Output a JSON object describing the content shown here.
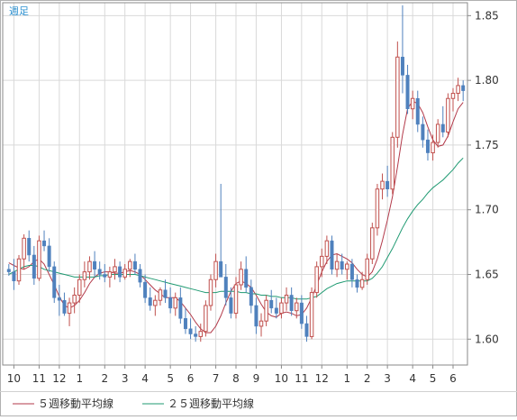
{
  "period_label": "週足",
  "legend": [
    {
      "label": "５週移動平均線",
      "color": "#b33a4a"
    },
    {
      "label": "２５週移動平均線",
      "color": "#1f9a72"
    }
  ],
  "colors": {
    "up": "#c0504d",
    "down": "#4f81bd",
    "grid": "#d9d9d9",
    "border": "#8a8a8a"
  },
  "chart_data": {
    "type": "candlestick",
    "title": "",
    "xlabel": "",
    "ylabel": "",
    "ylim": [
      1.58,
      1.86
    ],
    "y_ticks": [
      "1.60",
      "1.65",
      "1.70",
      "1.75",
      "1.80",
      "1.85"
    ],
    "x_ticks": [
      {
        "label": "10",
        "week": 1
      },
      {
        "label": "11",
        "week": 6
      },
      {
        "label": "12",
        "week": 10
      },
      {
        "label": "1",
        "week": 14
      },
      {
        "label": "2",
        "week": 19
      },
      {
        "label": "3",
        "week": 23
      },
      {
        "label": "4",
        "week": 27
      },
      {
        "label": "5",
        "week": 32
      },
      {
        "label": "6",
        "week": 36
      },
      {
        "label": "7",
        "week": 41
      },
      {
        "label": "8",
        "week": 45
      },
      {
        "label": "9",
        "week": 49
      },
      {
        "label": "10",
        "week": 54
      },
      {
        "label": "11",
        "week": 58
      },
      {
        "label": "12",
        "week": 62
      },
      {
        "label": "1",
        "week": 67
      },
      {
        "label": "2",
        "week": 71
      },
      {
        "label": "3",
        "week": 75
      },
      {
        "label": "4",
        "week": 80
      },
      {
        "label": "5",
        "week": 84
      },
      {
        "label": "6",
        "week": 88
      }
    ],
    "series": [
      {
        "name": "５週移動平均線",
        "values": [
          1.659,
          1.657,
          1.655,
          1.654,
          1.656,
          1.66,
          1.662,
          1.658,
          1.65,
          1.642,
          1.633,
          1.626,
          1.624,
          1.626,
          1.63,
          1.636,
          1.643,
          1.648,
          1.651,
          1.652,
          1.652,
          1.651,
          1.651,
          1.652,
          1.653,
          1.652,
          1.65,
          1.646,
          1.642,
          1.638,
          1.635,
          1.632,
          1.632,
          1.632,
          1.629,
          1.624,
          1.619,
          1.613,
          1.608,
          1.605,
          1.605,
          1.61,
          1.618,
          1.628,
          1.637,
          1.643,
          1.645,
          1.643,
          1.64,
          1.634,
          1.627,
          1.621,
          1.618,
          1.617,
          1.62,
          1.621,
          1.62,
          1.618,
          1.619,
          1.624,
          1.632,
          1.642,
          1.652,
          1.66,
          1.665,
          1.666,
          1.664,
          1.662,
          1.659,
          1.654,
          1.65,
          1.648,
          1.652,
          1.662,
          1.676,
          1.692,
          1.71,
          1.733,
          1.758,
          1.778,
          1.784,
          1.782,
          1.775,
          1.764,
          1.754,
          1.749,
          1.75,
          1.757,
          1.768,
          1.778,
          1.783
        ]
      },
      {
        "name": "２５週移動平均線",
        "values": [
          1.65,
          1.652,
          1.654,
          1.656,
          1.657,
          1.657,
          1.656,
          1.654,
          1.653,
          1.652,
          1.651,
          1.65,
          1.649,
          1.648,
          1.648,
          1.648,
          1.648,
          1.648,
          1.649,
          1.649,
          1.65,
          1.65,
          1.65,
          1.65,
          1.65,
          1.65,
          1.649,
          1.648,
          1.647,
          1.646,
          1.645,
          1.644,
          1.643,
          1.642,
          1.641,
          1.64,
          1.639,
          1.638,
          1.637,
          1.636,
          1.636,
          1.636,
          1.637,
          1.637,
          1.637,
          1.637,
          1.636,
          1.636,
          1.635,
          1.635,
          1.634,
          1.634,
          1.633,
          1.633,
          1.632,
          1.632,
          1.632,
          1.631,
          1.631,
          1.631,
          1.632,
          1.633,
          1.636,
          1.639,
          1.641,
          1.643,
          1.644,
          1.645,
          1.645,
          1.645,
          1.645,
          1.645,
          1.647,
          1.651,
          1.656,
          1.663,
          1.67,
          1.678,
          1.686,
          1.693,
          1.699,
          1.704,
          1.708,
          1.713,
          1.717,
          1.72,
          1.723,
          1.727,
          1.731,
          1.736,
          1.74
        ]
      }
    ],
    "candles": [
      [
        1.654,
        1.658,
        1.649,
        1.652
      ],
      [
        1.652,
        1.662,
        1.638,
        1.645
      ],
      [
        1.645,
        1.665,
        1.642,
        1.662
      ],
      [
        1.662,
        1.681,
        1.654,
        1.678
      ],
      [
        1.678,
        1.684,
        1.66,
        1.665
      ],
      [
        1.665,
        1.672,
        1.642,
        1.647
      ],
      [
        1.647,
        1.68,
        1.645,
        1.676
      ],
      [
        1.676,
        1.684,
        1.668,
        1.672
      ],
      [
        1.672,
        1.678,
        1.652,
        1.656
      ],
      [
        1.656,
        1.66,
        1.628,
        1.632
      ],
      [
        1.632,
        1.642,
        1.618,
        1.63
      ],
      [
        1.63,
        1.636,
        1.618,
        1.62
      ],
      [
        1.62,
        1.632,
        1.61,
        1.628
      ],
      [
        1.628,
        1.64,
        1.62,
        1.634
      ],
      [
        1.634,
        1.65,
        1.628,
        1.646
      ],
      [
        1.646,
        1.66,
        1.64,
        1.652
      ],
      [
        1.652,
        1.664,
        1.646,
        1.66
      ],
      [
        1.66,
        1.668,
        1.648,
        1.654
      ],
      [
        1.654,
        1.66,
        1.646,
        1.65
      ],
      [
        1.65,
        1.658,
        1.644,
        1.648
      ],
      [
        1.648,
        1.656,
        1.64,
        1.652
      ],
      [
        1.652,
        1.662,
        1.646,
        1.656
      ],
      [
        1.656,
        1.66,
        1.644,
        1.648
      ],
      [
        1.648,
        1.658,
        1.646,
        1.654
      ],
      [
        1.654,
        1.662,
        1.648,
        1.66
      ],
      [
        1.66,
        1.666,
        1.65,
        1.654
      ],
      [
        1.654,
        1.658,
        1.64,
        1.644
      ],
      [
        1.644,
        1.65,
        1.628,
        1.632
      ],
      [
        1.632,
        1.64,
        1.622,
        1.626
      ],
      [
        1.626,
        1.634,
        1.618,
        1.63
      ],
      [
        1.63,
        1.64,
        1.626,
        1.638
      ],
      [
        1.638,
        1.646,
        1.628,
        1.632
      ],
      [
        1.632,
        1.64,
        1.62,
        1.624
      ],
      [
        1.624,
        1.636,
        1.618,
        1.632
      ],
      [
        1.632,
        1.64,
        1.612,
        1.616
      ],
      [
        1.616,
        1.624,
        1.604,
        1.608
      ],
      [
        1.608,
        1.616,
        1.6,
        1.604
      ],
      [
        1.604,
        1.61,
        1.598,
        1.602
      ],
      [
        1.602,
        1.612,
        1.598,
        1.606
      ],
      [
        1.606,
        1.63,
        1.602,
        1.626
      ],
      [
        1.626,
        1.65,
        1.622,
        1.646
      ],
      [
        1.646,
        1.666,
        1.64,
        1.66
      ],
      [
        1.66,
        1.72,
        1.65,
        1.648
      ],
      [
        1.648,
        1.658,
        1.626,
        1.632
      ],
      [
        1.632,
        1.64,
        1.616,
        1.62
      ],
      [
        1.62,
        1.648,
        1.616,
        1.642
      ],
      [
        1.642,
        1.66,
        1.638,
        1.654
      ],
      [
        1.654,
        1.664,
        1.636,
        1.64
      ],
      [
        1.64,
        1.646,
        1.62,
        1.626
      ],
      [
        1.626,
        1.632,
        1.604,
        1.61
      ],
      [
        1.61,
        1.62,
        1.602,
        1.614
      ],
      [
        1.614,
        1.634,
        1.61,
        1.63
      ],
      [
        1.63,
        1.638,
        1.62,
        1.624
      ],
      [
        1.624,
        1.632,
        1.616,
        1.62
      ],
      [
        1.62,
        1.632,
        1.616,
        1.628
      ],
      [
        1.628,
        1.64,
        1.622,
        1.634
      ],
      [
        1.634,
        1.64,
        1.618,
        1.622
      ],
      [
        1.622,
        1.632,
        1.616,
        1.628
      ],
      [
        1.628,
        1.634,
        1.608,
        1.612
      ],
      [
        1.612,
        1.618,
        1.598,
        1.602
      ],
      [
        1.602,
        1.64,
        1.6,
        1.636
      ],
      [
        1.636,
        1.66,
        1.632,
        1.656
      ],
      [
        1.656,
        1.67,
        1.648,
        1.664
      ],
      [
        1.664,
        1.68,
        1.658,
        1.676
      ],
      [
        1.676,
        1.68,
        1.65,
        1.654
      ],
      [
        1.654,
        1.666,
        1.648,
        1.66
      ],
      [
        1.66,
        1.666,
        1.65,
        1.654
      ],
      [
        1.654,
        1.66,
        1.646,
        1.658
      ],
      [
        1.658,
        1.662,
        1.64,
        1.646
      ],
      [
        1.646,
        1.65,
        1.636,
        1.64
      ],
      [
        1.64,
        1.652,
        1.638,
        1.646
      ],
      [
        1.646,
        1.666,
        1.642,
        1.662
      ],
      [
        1.662,
        1.69,
        1.658,
        1.686
      ],
      [
        1.686,
        1.72,
        1.68,
        1.716
      ],
      [
        1.716,
        1.728,
        1.708,
        1.722
      ],
      [
        1.722,
        1.734,
        1.71,
        1.716
      ],
      [
        1.716,
        1.76,
        1.712,
        1.756
      ],
      [
        1.756,
        1.83,
        1.748,
        1.818
      ],
      [
        1.818,
        1.858,
        1.79,
        1.804
      ],
      [
        1.804,
        1.812,
        1.774,
        1.778
      ],
      [
        1.778,
        1.792,
        1.77,
        1.786
      ],
      [
        1.786,
        1.792,
        1.76,
        1.766
      ],
      [
        1.766,
        1.772,
        1.748,
        1.754
      ],
      [
        1.754,
        1.762,
        1.738,
        1.744
      ],
      [
        1.744,
        1.758,
        1.738,
        1.752
      ],
      [
        1.752,
        1.77,
        1.748,
        1.766
      ],
      [
        1.766,
        1.78,
        1.756,
        1.76
      ],
      [
        1.76,
        1.79,
        1.756,
        1.786
      ],
      [
        1.786,
        1.794,
        1.776,
        1.79
      ],
      [
        1.79,
        1.802,
        1.784,
        1.796
      ],
      [
        1.796,
        1.8,
        1.784,
        1.792
      ]
    ]
  }
}
